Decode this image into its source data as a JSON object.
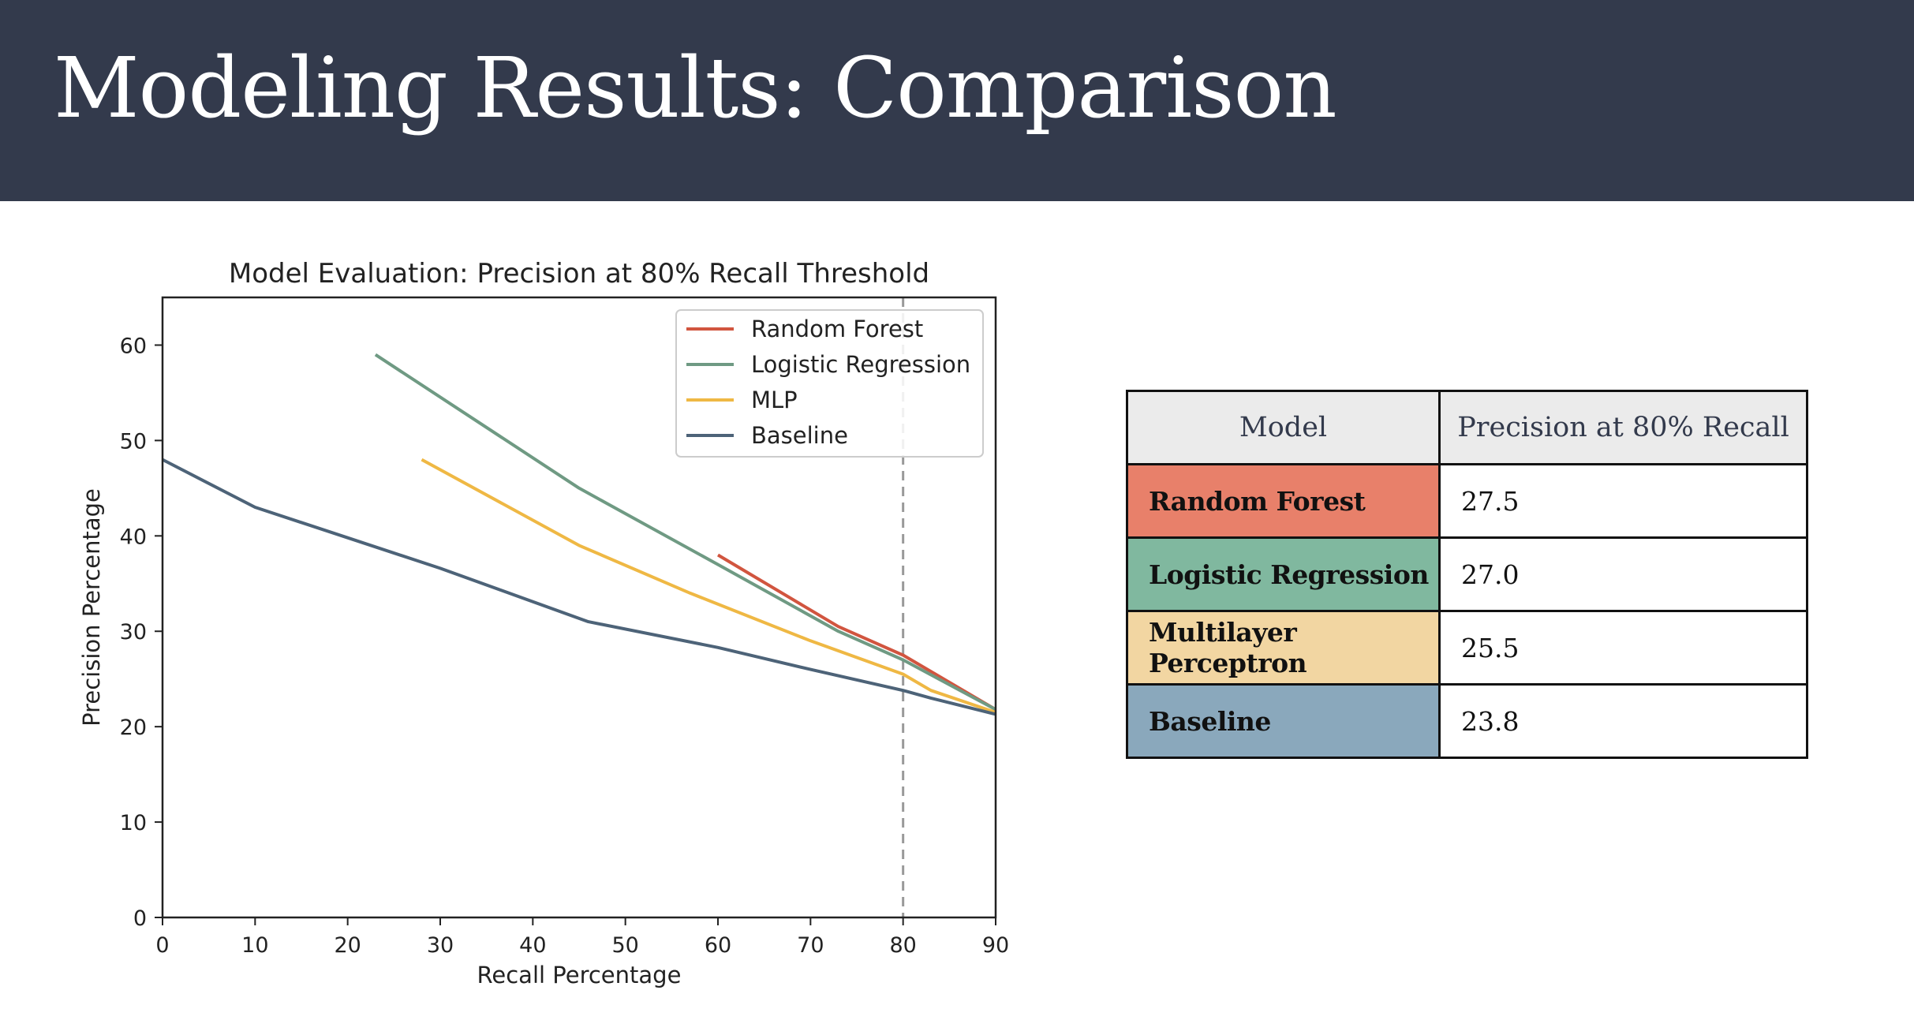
{
  "slide": {
    "title": "Modeling Results: Comparison"
  },
  "chart_data": {
    "type": "line",
    "title": "Model Evaluation: Precision at 80% Recall Threshold",
    "xlabel": "Recall Percentage",
    "ylabel": "Precision Percentage",
    "xlim": [
      0,
      90
    ],
    "ylim": [
      0,
      65
    ],
    "xticks": [
      0,
      10,
      20,
      30,
      40,
      50,
      60,
      70,
      80,
      90
    ],
    "yticks": [
      0,
      10,
      20,
      30,
      40,
      50,
      60
    ],
    "threshold_x": 80,
    "grid": false,
    "legend_position": "top-right",
    "series": [
      {
        "name": "Random Forest",
        "color": "#d1553f",
        "x": [
          60,
          73,
          80,
          90
        ],
        "y": [
          38,
          30.5,
          27.5,
          21.8
        ]
      },
      {
        "name": "Logistic Regression",
        "color": "#6f9a83",
        "x": [
          23,
          45,
          60,
          73,
          80,
          90
        ],
        "y": [
          59,
          45,
          37,
          30,
          27,
          21.8
        ]
      },
      {
        "name": "MLP",
        "color": "#efb844",
        "x": [
          28,
          45,
          57,
          70,
          80,
          83,
          90
        ],
        "y": [
          48,
          39,
          34,
          29,
          25.5,
          23.8,
          21.5
        ]
      },
      {
        "name": "Baseline",
        "color": "#4d6378",
        "x": [
          0,
          10,
          20,
          30,
          46,
          60,
          70,
          80,
          83,
          90
        ],
        "y": [
          48,
          43,
          39.8,
          36.6,
          31,
          28.3,
          26,
          23.8,
          23,
          21.3
        ]
      }
    ]
  },
  "table": {
    "headers": [
      "Model",
      "Precision at 80% Recall"
    ],
    "rows": [
      {
        "model": "Random Forest",
        "value": "27.5",
        "color": "#e8806a"
      },
      {
        "model": "Logistic Regression",
        "value": "27.0",
        "color": "#80b89f"
      },
      {
        "model": "Multilayer Perceptron",
        "value": "25.5",
        "color": "#f2d6a2"
      },
      {
        "model": "Baseline",
        "value": "23.8",
        "color": "#8aa8bc"
      }
    ]
  }
}
